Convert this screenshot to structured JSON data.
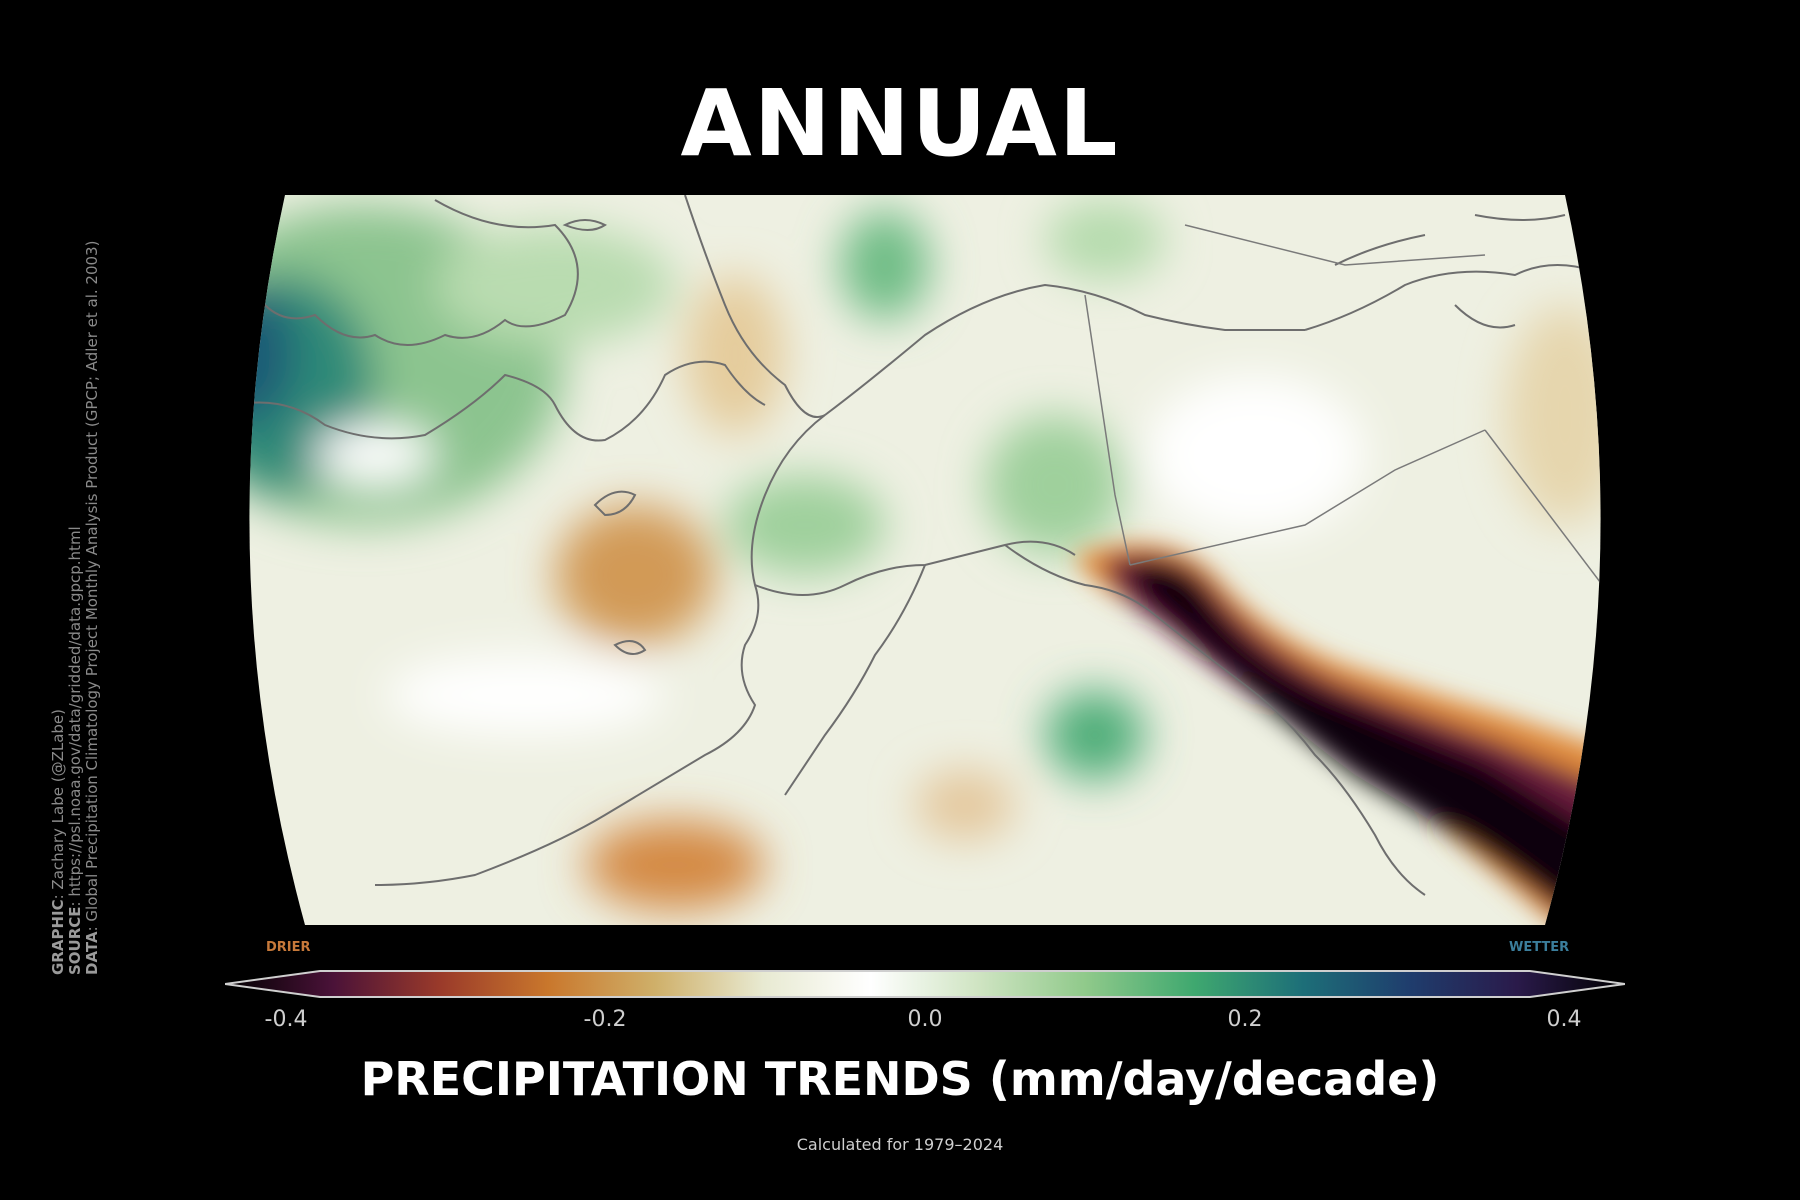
{
  "title": "ANNUAL",
  "credits": {
    "graphic_label": "GRAPHIC",
    "graphic_text": ": Zachary Labe (@ZLabe)",
    "source_label": "SOURCE",
    "source_text": ": https://psl.noaa.gov/data/gridded/data.gpcp.html",
    "data_label": "DATA",
    "data_text": ": Global Precipitation Climatology Project Monthly Analysis Product (GPCP; Adler et al. 2003)"
  },
  "colorbar": {
    "drier_label": "DRIER",
    "wetter_label": "WETTER",
    "ticks": [
      "-0.4",
      "-0.2",
      "0.0",
      "0.2",
      "0.4"
    ],
    "range": [
      -0.4,
      0.4
    ],
    "label": "PRECIPITATION TRENDS (mm/day/decade)",
    "colors": [
      "#000000",
      "#4a1238",
      "#9a3a2a",
      "#c9772c",
      "#cfb06a",
      "#e8ead2",
      "#ffffff",
      "#cfe4c2",
      "#8fc98a",
      "#3fa86f",
      "#1d6f78",
      "#1f3d6d",
      "#2a1a4a",
      "#000000"
    ]
  },
  "note": "Calculated for 1979–2024",
  "map": {
    "region": "Alaska and northwestern Canada",
    "features": [
      "coastlines",
      "Alaska–Canada border",
      "Yukon–Northwest Territories border",
      "British Columbia border"
    ]
  }
}
